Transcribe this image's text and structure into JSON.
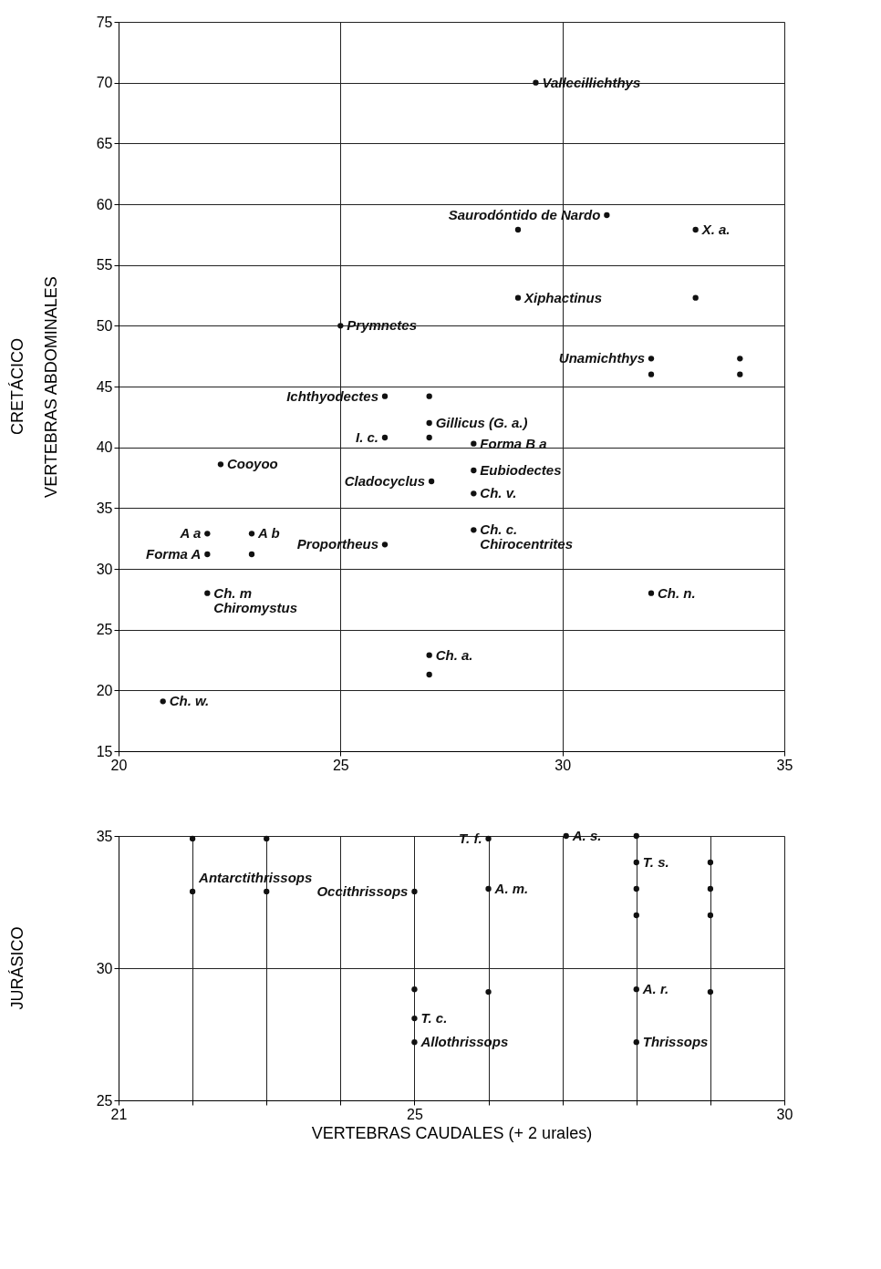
{
  "chart_data": [
    {
      "type": "scatter",
      "ylabel": "VERTEBRAS ABDOMINALES",
      "xlim": [
        20,
        35
      ],
      "ylim": [
        15,
        75
      ],
      "xticks": [
        20,
        25,
        30,
        35
      ],
      "yticks": [
        15,
        20,
        25,
        30,
        35,
        40,
        45,
        50,
        55,
        60,
        65,
        70,
        75
      ],
      "grid": true,
      "marker": "circle",
      "tick_labels": "xy",
      "series": [
        {
          "color": "#111111",
          "x": [
            29.4,
            31,
            29,
            33,
            29,
            33,
            25,
            32,
            34,
            32,
            34,
            26,
            27,
            26,
            27,
            27,
            28,
            28,
            22.3,
            27.05,
            28,
            28,
            32,
            22,
            23,
            22,
            23,
            26,
            22,
            27,
            27,
            21
          ],
          "values": [
            70,
            59.1,
            57.9,
            57.9,
            52.3,
            52.3,
            50,
            47.3,
            47.3,
            46,
            46,
            44.2,
            44.2,
            40.8,
            40.8,
            42,
            40.3,
            38.1,
            38.6,
            37.2,
            36.2,
            33.2,
            28,
            32.9,
            32.9,
            31.2,
            31.2,
            32,
            28,
            22.9,
            21.3,
            19.1
          ]
        }
      ],
      "annotations": [
        "CRETÁCICO",
        {
          "text": "Vallecillichthys",
          "x": 29.4,
          "y": 70
        },
        {
          "text": "Saurodóntido de Nardo",
          "x": 31,
          "y": 59.1
        },
        {
          "text": "X. a.",
          "x": 33,
          "y": 57.9
        },
        {
          "text": "Xiphactinus",
          "x": 29,
          "y": 52.3
        },
        {
          "text": "Prymnetes",
          "x": 25,
          "y": 50
        },
        {
          "text": "Unamichthys",
          "x": 32,
          "y": 47.3
        },
        {
          "text": "Ichthyodectes",
          "x": 26,
          "y": 44.2
        },
        {
          "text": "I. c.",
          "x": 26,
          "y": 40.8
        },
        {
          "text": "Gillicus (G. a.)",
          "x": 27,
          "y": 42
        },
        {
          "text": "Forma B a",
          "x": 28,
          "y": 40.3
        },
        {
          "text": "Eubiodectes",
          "x": 28,
          "y": 38.1
        },
        {
          "text": "Cooyoo",
          "x": 22.3,
          "y": 38.6
        },
        {
          "text": "Cladocyclus",
          "x": 27.05,
          "y": 37.2
        },
        {
          "text": "Ch. v.",
          "x": 28,
          "y": 36.2
        },
        {
          "text": "Ch. c.",
          "x": 28,
          "y": 33.2
        },
        {
          "text": "Chirocentrites",
          "x": 28,
          "y": 33.2
        },
        {
          "text": "Ch. n.",
          "x": 32,
          "y": 28
        },
        {
          "text": "A a",
          "x": 22,
          "y": 32.9
        },
        {
          "text": "A b",
          "x": 23,
          "y": 32.9
        },
        {
          "text": "Forma A",
          "x": 22,
          "y": 31.2
        },
        {
          "text": "Proportheus",
          "x": 26,
          "y": 32
        },
        {
          "text": "Ch. m",
          "x": 22,
          "y": 28
        },
        {
          "text": "Chiromystus",
          "x": 22,
          "y": 28
        },
        {
          "text": "Ch. a.",
          "x": 27,
          "y": 22.9
        },
        {
          "text": "Ch. w.",
          "x": 21,
          "y": 19.1
        }
      ]
    },
    {
      "type": "scatter",
      "xlabel": "VERTEBRAS CAUDALES (+ 2 urales)",
      "xlim": [
        21,
        30
      ],
      "ylim": [
        25,
        35
      ],
      "xticks": [
        21,
        {
          "value": 22,
          "label": null
        },
        {
          "value": 23,
          "label": null
        },
        {
          "value": 24,
          "label": null
        },
        25,
        {
          "value": 26,
          "label": null
        },
        {
          "value": 27,
          "label": null
        },
        {
          "value": 28,
          "label": null
        },
        {
          "value": 29,
          "label": null
        },
        30
      ],
      "yticks": [
        25,
        30,
        35
      ],
      "grid": true,
      "marker": "circle",
      "tick_labels": "xy",
      "series": [
        {
          "color": "#111111",
          "x": [
            22,
            23,
            22,
            23,
            25,
            26,
            27.05,
            28,
            28,
            29,
            28,
            29,
            28,
            29,
            26,
            25,
            25,
            25,
            26,
            28,
            29,
            28
          ],
          "values": [
            34.9,
            34.9,
            32.9,
            32.9,
            32.9,
            34.9,
            35,
            35,
            34,
            34,
            32,
            32,
            33,
            33,
            33,
            29.2,
            28.1,
            27.2,
            29.1,
            29.2,
            29.1,
            27.2
          ]
        }
      ],
      "annotations": [
        "JURÁSICO",
        {
          "text": "Antarctithrissops",
          "x": 22,
          "y": 32.9
        },
        {
          "text": "Occithrissops",
          "x": 25,
          "y": 32.9
        },
        {
          "text": "T. f.",
          "x": 26,
          "y": 34.9
        },
        {
          "text": "A. s.",
          "x": 27.05,
          "y": 35
        },
        {
          "text": "T. s.",
          "x": 28,
          "y": 34
        },
        {
          "text": "A. m.",
          "x": 26,
          "y": 33
        },
        {
          "text": "T. c.",
          "x": 25,
          "y": 28.1
        },
        {
          "text": "A. r.",
          "x": 28,
          "y": 29.2
        },
        {
          "text": "Allothrissops",
          "x": 25,
          "y": 27.2
        },
        {
          "text": "Thrissops",
          "x": 28,
          "y": 27.2
        }
      ]
    }
  ]
}
